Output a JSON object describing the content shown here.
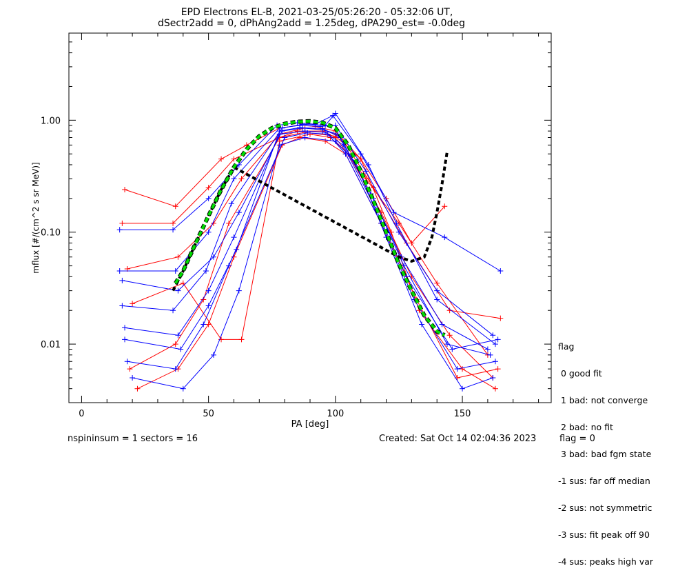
{
  "chart_data": {
    "type": "scatter",
    "title": "EPD Electrons EL-B, 2021-03-25/05:26:20 - 05:32:06 UT,",
    "subtitle": "dSectr2add = 0, dPhAng2add = 1.25deg, dPA290_est=  -0.0deg",
    "xlabel": "PA [deg]",
    "ylabel": "mflux [#/(cm^2 s sr MeV)]",
    "xlim": [
      -5,
      185
    ],
    "ylim": [
      0.003,
      6.0
    ],
    "yscale": "log",
    "x_ticks": [
      "0",
      "50",
      "100",
      "150"
    ],
    "y_ticks": [
      "0.01",
      "0.10",
      "1.00"
    ],
    "colors": {
      "red": "#ff0000",
      "blue": "#0000ff",
      "fit": "#00dd00",
      "fit_outline": "#000000"
    },
    "series": [
      {
        "color": "red",
        "x": [
          17,
          37,
          55,
          65,
          78,
          86,
          92,
          100,
          110,
          120,
          130,
          143
        ],
        "y": [
          0.24,
          0.17,
          0.45,
          0.6,
          0.85,
          0.9,
          0.88,
          0.8,
          0.45,
          0.2,
          0.08,
          0.17
        ]
      },
      {
        "color": "red",
        "x": [
          16,
          36,
          50,
          60,
          78,
          85,
          95,
          100,
          112,
          125,
          140,
          160
        ],
        "y": [
          0.12,
          0.12,
          0.25,
          0.45,
          0.7,
          0.8,
          0.8,
          0.7,
          0.3,
          0.12,
          0.035,
          0.008
        ]
      },
      {
        "color": "red",
        "x": [
          18,
          38,
          52,
          63,
          78,
          88,
          95,
          102,
          115,
          128,
          145,
          165
        ],
        "y": [
          0.047,
          0.06,
          0.12,
          0.3,
          0.75,
          0.85,
          0.82,
          0.72,
          0.25,
          0.08,
          0.02,
          0.017
        ]
      },
      {
        "color": "red",
        "x": [
          20,
          40,
          55,
          63,
          78,
          90,
          98,
          105,
          118,
          130,
          145,
          162
        ],
        "y": [
          0.023,
          0.035,
          0.011,
          0.011,
          0.65,
          0.75,
          0.7,
          0.5,
          0.15,
          0.04,
          0.012,
          0.005
        ]
      },
      {
        "color": "red",
        "x": [
          19,
          37,
          48,
          58,
          78,
          88,
          100,
          110,
          122,
          133,
          150,
          163
        ],
        "y": [
          0.006,
          0.01,
          0.025,
          0.12,
          0.7,
          0.78,
          0.72,
          0.45,
          0.1,
          0.02,
          0.006,
          0.004
        ]
      },
      {
        "color": "red",
        "x": [
          22,
          38,
          50,
          60,
          79,
          86,
          96,
          104,
          118,
          132,
          148,
          164
        ],
        "y": [
          0.004,
          0.006,
          0.015,
          0.06,
          0.6,
          0.7,
          0.65,
          0.5,
          0.12,
          0.025,
          0.005,
          0.006
        ]
      },
      {
        "color": "blue",
        "x": [
          15,
          36,
          50,
          62,
          77,
          85,
          92,
          99,
          110,
          123,
          143,
          165
        ],
        "y": [
          0.105,
          0.105,
          0.2,
          0.4,
          0.9,
          0.95,
          0.92,
          1.1,
          0.5,
          0.15,
          0.09,
          0.045
        ]
      },
      {
        "color": "blue",
        "x": [
          15,
          37,
          50,
          60,
          78,
          86,
          94,
          100,
          112,
          125,
          140,
          162
        ],
        "y": [
          0.045,
          0.045,
          0.1,
          0.3,
          0.85,
          0.9,
          0.88,
          0.9,
          0.35,
          0.1,
          0.03,
          0.012
        ]
      },
      {
        "color": "blue",
        "x": [
          16,
          38,
          52,
          62,
          79,
          87,
          95,
          101,
          114,
          126,
          142,
          160
        ],
        "y": [
          0.037,
          0.03,
          0.06,
          0.15,
          0.8,
          0.85,
          0.82,
          0.75,
          0.22,
          0.06,
          0.015,
          0.009
        ]
      },
      {
        "color": "blue",
        "x": [
          17,
          38,
          50,
          60,
          78,
          88,
          96,
          103,
          116,
          128,
          146,
          164
        ],
        "y": [
          0.014,
          0.012,
          0.03,
          0.09,
          0.75,
          0.8,
          0.78,
          0.6,
          0.16,
          0.04,
          0.009,
          0.011
        ]
      },
      {
        "color": "blue",
        "x": [
          18,
          37,
          48,
          58,
          80,
          89,
          97,
          104,
          118,
          131,
          148,
          163
        ],
        "y": [
          0.007,
          0.006,
          0.015,
          0.05,
          0.7,
          0.77,
          0.75,
          0.5,
          0.12,
          0.025,
          0.006,
          0.007
        ]
      },
      {
        "color": "blue",
        "x": [
          20,
          40,
          52,
          62,
          78,
          88,
          100,
          108,
          120,
          134,
          150,
          162
        ],
        "y": [
          0.005,
          0.004,
          0.008,
          0.03,
          0.6,
          0.7,
          0.65,
          0.42,
          0.09,
          0.015,
          0.004,
          0.005
        ]
      },
      {
        "color": "blue",
        "x": [
          17,
          39,
          50,
          61,
          78,
          86,
          95,
          102,
          115,
          127,
          144,
          161
        ],
        "y": [
          0.011,
          0.009,
          0.022,
          0.07,
          0.8,
          0.86,
          0.84,
          0.7,
          0.2,
          0.05,
          0.01,
          0.008
        ]
      },
      {
        "color": "blue",
        "x": [
          16,
          36,
          49,
          59,
          79,
          87,
          96,
          100,
          113,
          124,
          140,
          163
        ],
        "y": [
          0.022,
          0.02,
          0.045,
          0.18,
          0.85,
          0.92,
          0.9,
          1.15,
          0.4,
          0.12,
          0.025,
          0.01
        ]
      }
    ],
    "fit": {
      "x": [
        37,
        40,
        45,
        50,
        55,
        60,
        65,
        70,
        75,
        80,
        85,
        90,
        95,
        100,
        105,
        110,
        115,
        120,
        125,
        130,
        135,
        140,
        143
      ],
      "y": [
        0.035,
        0.045,
        0.08,
        0.14,
        0.24,
        0.38,
        0.55,
        0.72,
        0.85,
        0.93,
        0.97,
        0.98,
        0.95,
        0.85,
        0.6,
        0.35,
        0.19,
        0.1,
        0.052,
        0.03,
        0.018,
        0.013,
        0.012
      ]
    },
    "model": {
      "x": [
        36,
        40,
        45,
        50,
        55,
        60,
        125,
        130,
        135,
        138,
        140,
        142,
        144
      ],
      "y": [
        0.03,
        0.045,
        0.08,
        0.14,
        0.24,
        0.38,
        0.06,
        0.055,
        0.06,
        0.09,
        0.15,
        0.27,
        0.52
      ]
    }
  },
  "footer": {
    "left": "nspininsum =  1  sectors = 16",
    "created": "Created: Sat Oct 14 02:04:36 2023",
    "flag": "flag = 0"
  },
  "legend": {
    "title": "flag",
    "items": [
      " 0 good fit",
      " 1 bad: not converge",
      " 2 bad: no fit",
      " 3 bad: bad fgm state",
      "-1 sus: far off median",
      "-2 sus: not symmetric",
      "-3 sus: fit peak off 90",
      "-4 sus: peaks high var"
    ]
  }
}
